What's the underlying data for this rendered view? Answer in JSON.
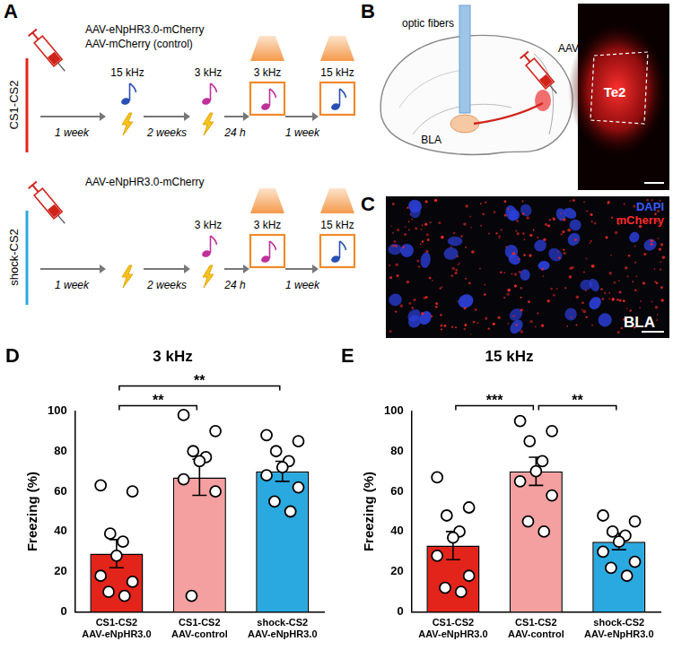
{
  "panel_letters": [
    "A",
    "B",
    "C",
    "D",
    "E"
  ],
  "panel_a": {
    "rows": [
      {
        "group": "CS1-CS2",
        "color": "#e3241b",
        "viruses": [
          "AAV-eNpHR3.0-mCherry",
          "AAV-mCherry (control)"
        ],
        "first_tone": "15 kHz",
        "second_tone": "3 kHz",
        "intervals": [
          "1 week",
          "2 weeks",
          "24 h",
          "1 week"
        ],
        "tests": [
          "3 kHz",
          "15 kHz"
        ]
      },
      {
        "group": "shock-CS2",
        "color": "#2aa9e0",
        "viruses": [
          "AAV-eNpHR3.0-mCherry"
        ],
        "second_tone": "3 kHz",
        "intervals": [
          "1 week",
          "2 weeks",
          "24 h",
          "1 week"
        ],
        "tests": [
          "3 kHz",
          "15 kHz"
        ]
      }
    ]
  },
  "panel_b": {
    "fibers": "optic fibers",
    "injection": "AAVs",
    "target": "BLA",
    "region": "Te2"
  },
  "panel_c": {
    "stains": [
      {
        "name": "DAPI",
        "color": "#3a5bff"
      },
      {
        "name": "mCherry",
        "color": "#ff2a2a"
      }
    ],
    "region": "BLA"
  },
  "chart_data": [
    {
      "type": "bar",
      "title": "3 kHz",
      "ylabel": "Freezing (%)",
      "categories": [
        [
          "CS1-CS2",
          "AAV-eNpHR3.0"
        ],
        [
          "CS1-CS2",
          "AAV-control"
        ],
        [
          "shock-CS2",
          "AAV-eNpHR3.0"
        ]
      ],
      "values": [
        29,
        67,
        70
      ],
      "errors": [
        7,
        9,
        5
      ],
      "points": [
        [
          63,
          60,
          39,
          35,
          28,
          18,
          15,
          10,
          8
        ],
        [
          98,
          90,
          80,
          77,
          75,
          66,
          60,
          8
        ],
        [
          88,
          85,
          80,
          75,
          72,
          68,
          62,
          55,
          50
        ]
      ],
      "colors": [
        "#e3241b",
        "#f4a0a0",
        "#2aa9e0"
      ],
      "ylim": [
        0,
        100
      ],
      "yticks": [
        0,
        20,
        40,
        60,
        80,
        100
      ],
      "grid": false,
      "annotations": [
        {
          "from": 0,
          "to": 1,
          "label": "**"
        },
        {
          "from": 0,
          "to": 2,
          "label": "**"
        }
      ]
    },
    {
      "type": "bar",
      "title": "15 kHz",
      "ylabel": "Freezing (%)",
      "categories": [
        [
          "CS1-CS2",
          "AAV-eNpHR3.0"
        ],
        [
          "CS1-CS2",
          "AAV-control"
        ],
        [
          "shock-CS2",
          "AAV-eNpHR3.0"
        ]
      ],
      "values": [
        33,
        70,
        35
      ],
      "errors": [
        7,
        7,
        4
      ],
      "points": [
        [
          67,
          52,
          48,
          40,
          37,
          28,
          18,
          12,
          10
        ],
        [
          95,
          90,
          85,
          75,
          70,
          65,
          58,
          45,
          40
        ],
        [
          48,
          45,
          40,
          38,
          35,
          30,
          25,
          22,
          18
        ]
      ],
      "colors": [
        "#e3241b",
        "#f4a0a0",
        "#2aa9e0"
      ],
      "ylim": [
        0,
        100
      ],
      "yticks": [
        0,
        20,
        40,
        60,
        80,
        100
      ],
      "grid": false,
      "annotations": [
        {
          "from": 0,
          "to": 1,
          "label": "***"
        },
        {
          "from": 1,
          "to": 2,
          "label": "**"
        }
      ]
    }
  ]
}
